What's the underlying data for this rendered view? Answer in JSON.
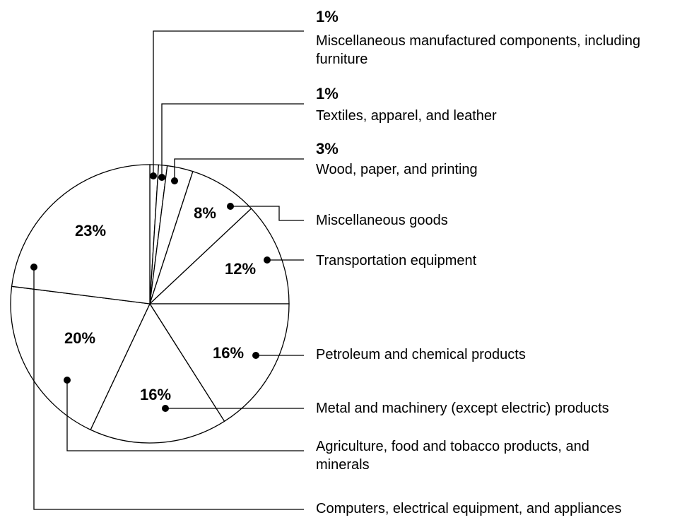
{
  "chart_data": {
    "type": "pie",
    "categories": [
      "Miscellaneous manufactured components, including furniture",
      "Textiles, apparel, and leather",
      "Wood, paper, and printing",
      "Miscellaneous goods",
      "Transportation equipment",
      "Petroleum and chemical products",
      "Metal and machinery (except electric) products",
      "Agriculture, food and tobacco products, and minerals",
      "Computers, electrical equipment, and appliances"
    ],
    "values": [
      1,
      1,
      3,
      8,
      12,
      16,
      16,
      20,
      23
    ],
    "value_labels": [
      "1%",
      "1%",
      "3%",
      "8%",
      "12%",
      "16%",
      "16%",
      "20%",
      "23%"
    ],
    "color": "#ffffff"
  }
}
